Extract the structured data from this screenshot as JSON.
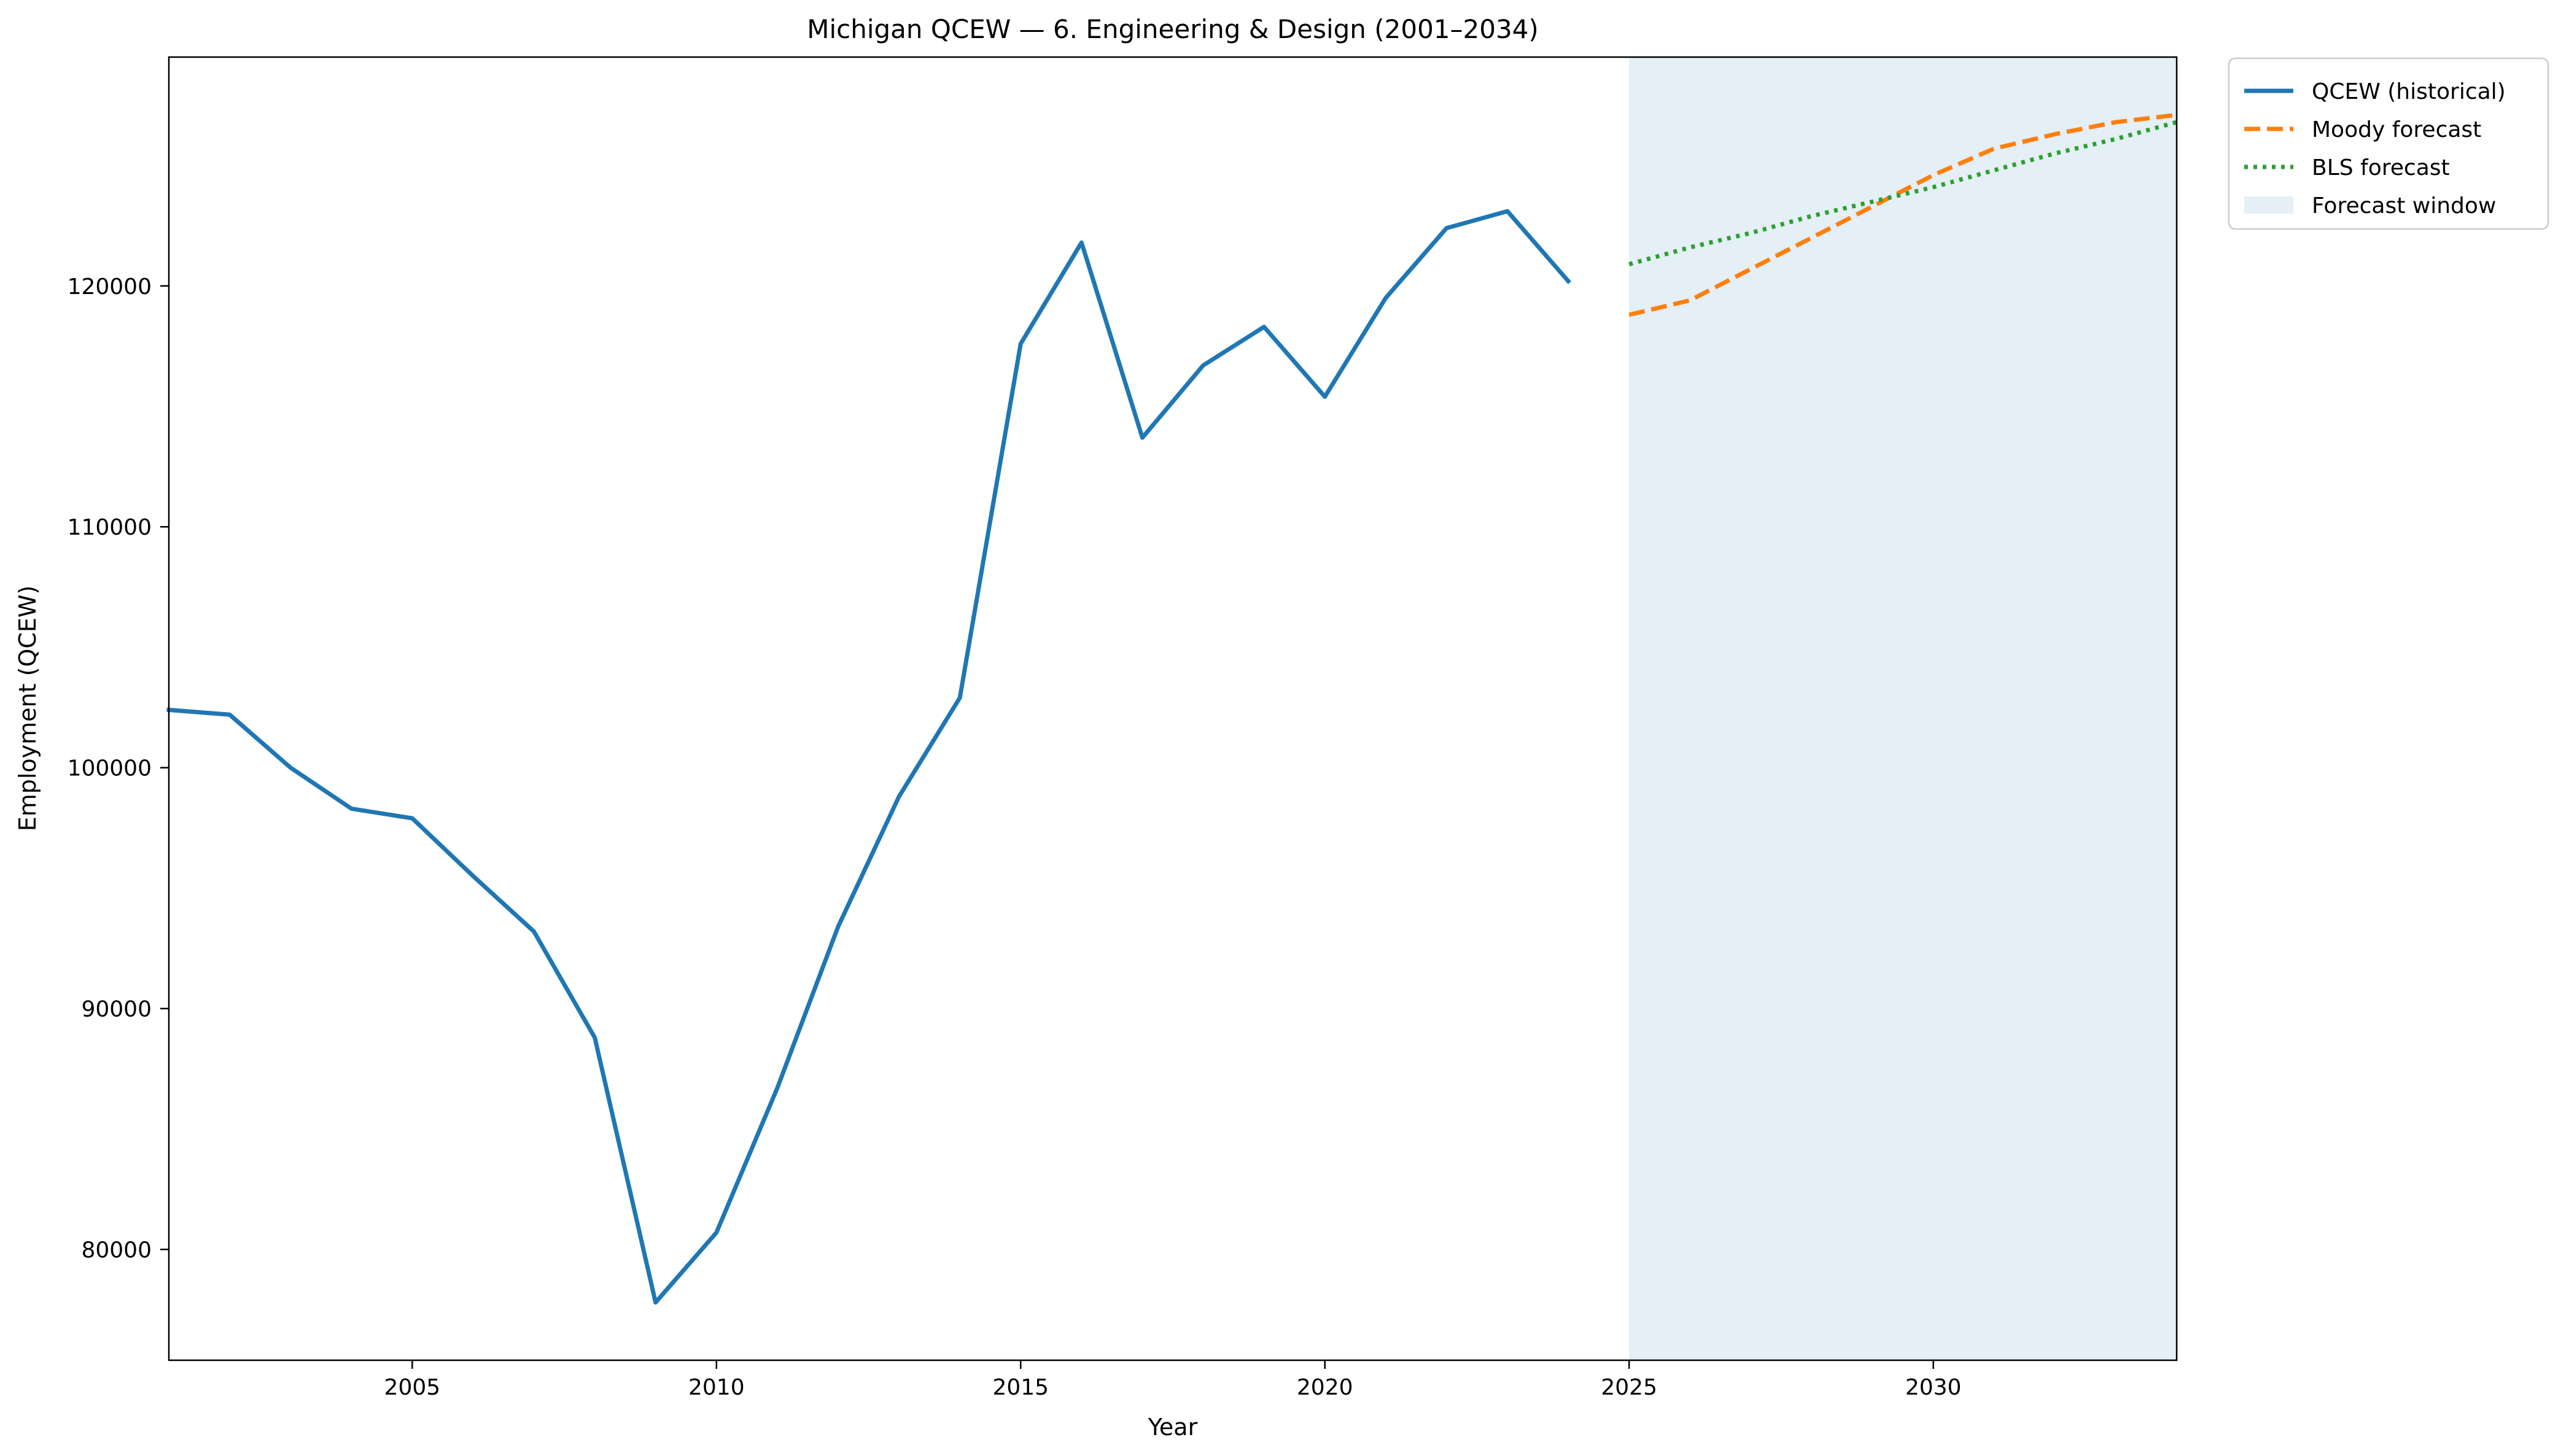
{
  "chart_data": {
    "type": "line",
    "title": "Michigan QCEW — 6. Engineering & Design (2001–2034)",
    "xlabel": "Year",
    "ylabel": "Employment (QCEW)",
    "xlim": [
      2001,
      2034
    ],
    "ylim": [
      75400,
      129500
    ],
    "xticks": [
      2005,
      2010,
      2015,
      2020,
      2025,
      2030
    ],
    "yticks": [
      80000,
      90000,
      100000,
      110000,
      120000
    ],
    "grid": false,
    "legend_position": "outside-top-right",
    "forecast_window": {
      "label": "Forecast window",
      "x_start": 2025,
      "x_end": 2034,
      "color": "#dbe9f3"
    },
    "series": [
      {
        "name": "QCEW (historical)",
        "style": "solid",
        "color": "#1f77b4",
        "x": [
          2001,
          2002,
          2003,
          2004,
          2005,
          2006,
          2007,
          2008,
          2009,
          2010,
          2011,
          2012,
          2013,
          2014,
          2015,
          2016,
          2017,
          2018,
          2019,
          2020,
          2021,
          2022,
          2023,
          2024
        ],
        "values": [
          102400,
          102200,
          100000,
          98300,
          97900,
          95500,
          93200,
          88800,
          77800,
          80700,
          86700,
          93400,
          98800,
          102900,
          117600,
          121800,
          113700,
          116700,
          118300,
          115400,
          119500,
          122400,
          123100,
          120200
        ]
      },
      {
        "name": "Moody forecast",
        "style": "dashed",
        "color": "#ff7f0e",
        "x": [
          2025,
          2026,
          2027,
          2028,
          2029,
          2030,
          2031,
          2032,
          2033,
          2034
        ],
        "values": [
          118800,
          119400,
          120700,
          122000,
          123300,
          124600,
          125700,
          126300,
          126800,
          127100
        ]
      },
      {
        "name": "BLS forecast",
        "style": "dotted",
        "color": "#2ca02c",
        "x": [
          2025,
          2026,
          2027,
          2028,
          2029,
          2030,
          2031,
          2032,
          2033,
          2034
        ],
        "values": [
          120900,
          121600,
          122200,
          122900,
          123500,
          124100,
          124800,
          125500,
          126100,
          126800
        ]
      }
    ]
  }
}
